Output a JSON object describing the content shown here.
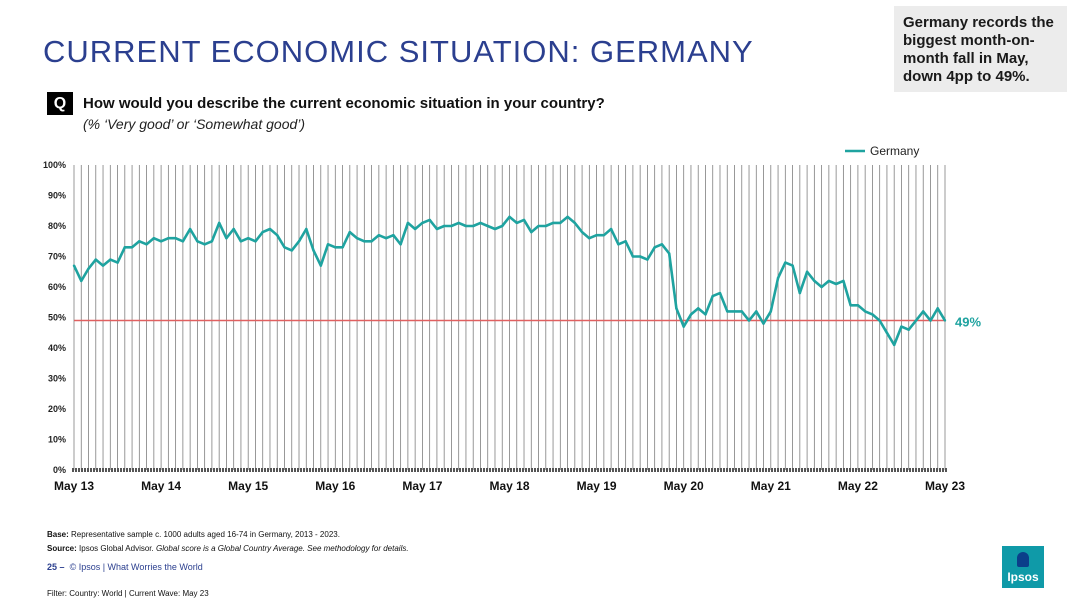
{
  "title": "CURRENT ECONOMIC SITUATION: GERMANY",
  "callout": "Germany records the biggest month-on-month fall in May, down 4pp to 49%.",
  "question": {
    "badge": "Q",
    "text": "How would you describe the current economic situation in your country?",
    "subtext": "(% ‘Very good’ or ‘Somewhat good’)"
  },
  "chart_data": {
    "type": "line",
    "title": "",
    "xlabel": "",
    "ylabel": "",
    "ylim": [
      0,
      100
    ],
    "y_ticks": [
      "0%",
      "10%",
      "20%",
      "30%",
      "40%",
      "50%",
      "60%",
      "70%",
      "80%",
      "90%",
      "100%"
    ],
    "x_tick_labels": [
      "May 13",
      "May 14",
      "May 15",
      "May 16",
      "May 17",
      "May 18",
      "May 19",
      "May 20",
      "May 21",
      "May 22",
      "May 23"
    ],
    "grid": "vertical",
    "legend_position": "top-right",
    "reference_line": {
      "value": 49,
      "color": "#e06060"
    },
    "end_label": "49%",
    "colors": {
      "series": "#1fa3a0",
      "reference": "#e06060"
    },
    "series": [
      {
        "name": "Germany",
        "x": [
          0,
          1,
          2,
          3,
          4,
          5,
          6,
          7,
          8,
          9,
          10,
          11,
          12,
          13,
          14,
          15,
          16,
          17,
          18,
          19,
          20,
          21,
          22,
          23,
          24,
          25,
          26,
          27,
          28,
          29,
          30,
          31,
          32,
          33,
          34,
          35,
          36,
          37,
          38,
          39,
          40,
          41,
          42,
          43,
          44,
          45,
          46,
          47,
          48,
          49,
          50,
          51,
          52,
          53,
          54,
          55,
          56,
          57,
          58,
          59,
          60,
          61,
          62,
          63,
          64,
          65,
          66,
          67,
          68,
          69,
          70,
          71,
          72,
          73,
          74,
          75,
          76,
          77,
          78,
          79,
          80,
          81,
          82,
          83,
          84,
          85,
          86,
          87,
          88,
          89,
          90,
          91,
          92,
          93,
          94,
          95,
          96,
          97,
          98,
          99,
          100,
          101,
          102,
          103,
          104,
          105,
          106,
          107,
          108,
          109,
          110,
          111,
          112,
          113,
          114,
          115,
          116,
          117,
          118,
          119,
          120
        ],
        "values": [
          67,
          62,
          66,
          69,
          67,
          69,
          68,
          73,
          73,
          75,
          74,
          76,
          75,
          76,
          76,
          75,
          79,
          75,
          74,
          75,
          81,
          76,
          79,
          75,
          76,
          75,
          78,
          79,
          77,
          73,
          72,
          75,
          79,
          72,
          67,
          74,
          73,
          73,
          78,
          76,
          75,
          75,
          77,
          76,
          77,
          74,
          81,
          79,
          81,
          82,
          79,
          80,
          80,
          81,
          80,
          80,
          81,
          80,
          79,
          80,
          83,
          81,
          82,
          78,
          80,
          80,
          81,
          81,
          83,
          81,
          78,
          76,
          77,
          77,
          79,
          74,
          75,
          70,
          70,
          69,
          73,
          74,
          71,
          53,
          47,
          51,
          53,
          51,
          57,
          58,
          52,
          52,
          52,
          49,
          52,
          48,
          52,
          63,
          68,
          67,
          58,
          65,
          62,
          60,
          62,
          61,
          62,
          54,
          54,
          52,
          51,
          49,
          45,
          41,
          47,
          46,
          49,
          52,
          49,
          53,
          49
        ]
      }
    ]
  },
  "base": {
    "label": "Base:",
    "text": "Representative sample c. 1000 adults aged 16-74 in Germany, 2013 - 2023."
  },
  "source": {
    "label": "Source:",
    "text": "Ipsos Global Advisor.",
    "note": "Global score is a Global Country Average. See methodology for details."
  },
  "footer": {
    "page": "25",
    "dash": "–",
    "text": "© Ipsos | What Worries the World"
  },
  "filter": "Filter: Country: World | Current Wave: May 23",
  "logo": "Ipsos"
}
